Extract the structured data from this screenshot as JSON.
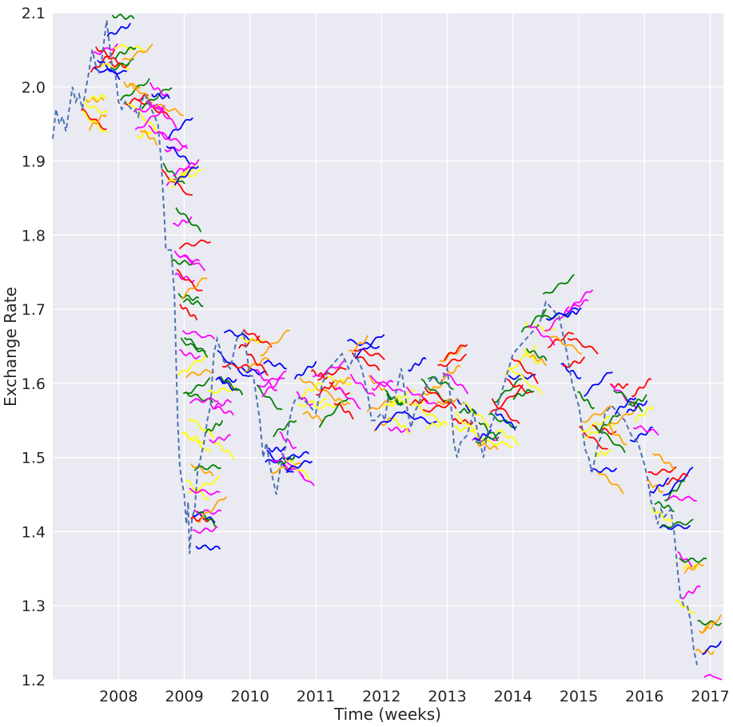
{
  "chart_data": {
    "type": "line",
    "title": "",
    "xlabel": "Time (weeks)",
    "ylabel": "Exchange Rate",
    "xlim": [
      2007.0,
      2017.2
    ],
    "ylim": [
      1.2,
      2.1
    ],
    "x_ticks": [
      2008,
      2009,
      2010,
      2011,
      2012,
      2013,
      2014,
      2015,
      2016,
      2017
    ],
    "x_tick_labels": [
      "2008",
      "2009",
      "2010",
      "2011",
      "2012",
      "2013",
      "2014",
      "2015",
      "2016",
      "2017"
    ],
    "y_ticks": [
      1.2,
      1.3,
      1.4,
      1.5,
      1.6,
      1.7,
      1.8,
      1.9,
      2.0,
      2.1
    ],
    "y_tick_labels": [
      "1.2",
      "1.3",
      "1.4",
      "1.5",
      "1.6",
      "1.7",
      "1.8",
      "1.9",
      "2.0",
      "2.1"
    ],
    "grid": true,
    "background": "#eaeaf2",
    "actual_series": {
      "style": "dashed",
      "color": "#4c72b0",
      "points": [
        [
          2007.0,
          1.93
        ],
        [
          2007.05,
          1.97
        ],
        [
          2007.1,
          1.95
        ],
        [
          2007.15,
          1.96
        ],
        [
          2007.2,
          1.94
        ],
        [
          2007.25,
          1.97
        ],
        [
          2007.3,
          2.0
        ],
        [
          2007.35,
          1.98
        ],
        [
          2007.4,
          1.99
        ],
        [
          2007.45,
          1.97
        ],
        [
          2007.55,
          2.02
        ],
        [
          2007.6,
          2.05
        ],
        [
          2007.65,
          2.03
        ],
        [
          2007.7,
          2.02
        ],
        [
          2007.75,
          2.04
        ],
        [
          2007.82,
          2.09
        ],
        [
          2007.9,
          2.03
        ],
        [
          2007.95,
          2.02
        ],
        [
          2008.0,
          1.98
        ],
        [
          2008.05,
          1.97
        ],
        [
          2008.1,
          1.98
        ],
        [
          2008.2,
          1.97
        ],
        [
          2008.25,
          1.97
        ],
        [
          2008.3,
          1.96
        ],
        [
          2008.35,
          1.98
        ],
        [
          2008.4,
          1.99
        ],
        [
          2008.45,
          1.98
        ],
        [
          2008.5,
          1.97
        ],
        [
          2008.55,
          1.96
        ],
        [
          2008.6,
          1.95
        ],
        [
          2008.65,
          1.9
        ],
        [
          2008.7,
          1.82
        ],
        [
          2008.72,
          1.78
        ],
        [
          2008.8,
          1.78
        ],
        [
          2008.85,
          1.72
        ],
        [
          2008.88,
          1.62
        ],
        [
          2008.9,
          1.55
        ],
        [
          2008.93,
          1.49
        ],
        [
          2008.96,
          1.47
        ],
        [
          2009.0,
          1.45
        ],
        [
          2009.03,
          1.41
        ],
        [
          2009.06,
          1.44
        ],
        [
          2009.08,
          1.37
        ],
        [
          2009.12,
          1.42
        ],
        [
          2009.16,
          1.43
        ],
        [
          2009.2,
          1.48
        ],
        [
          2009.25,
          1.5
        ],
        [
          2009.3,
          1.52
        ],
        [
          2009.35,
          1.55
        ],
        [
          2009.4,
          1.57
        ],
        [
          2009.45,
          1.64
        ],
        [
          2009.5,
          1.66
        ],
        [
          2009.6,
          1.63
        ],
        [
          2009.7,
          1.62
        ],
        [
          2009.8,
          1.66
        ],
        [
          2009.9,
          1.67
        ],
        [
          2010.0,
          1.61
        ],
        [
          2010.05,
          1.61
        ],
        [
          2010.1,
          1.58
        ],
        [
          2010.15,
          1.55
        ],
        [
          2010.2,
          1.5
        ],
        [
          2010.25,
          1.52
        ],
        [
          2010.3,
          1.49
        ],
        [
          2010.35,
          1.47
        ],
        [
          2010.4,
          1.45
        ],
        [
          2010.45,
          1.48
        ],
        [
          2010.5,
          1.5
        ],
        [
          2010.55,
          1.52
        ],
        [
          2010.6,
          1.55
        ],
        [
          2010.65,
          1.57
        ],
        [
          2010.7,
          1.58
        ],
        [
          2010.8,
          1.58
        ],
        [
          2010.9,
          1.57
        ],
        [
          2011.0,
          1.56
        ],
        [
          2011.05,
          1.58
        ],
        [
          2011.1,
          1.6
        ],
        [
          2011.2,
          1.62
        ],
        [
          2011.3,
          1.63
        ],
        [
          2011.4,
          1.64
        ],
        [
          2011.5,
          1.62
        ],
        [
          2011.6,
          1.64
        ],
        [
          2011.7,
          1.62
        ],
        [
          2011.8,
          1.58
        ],
        [
          2011.85,
          1.55
        ],
        [
          2011.9,
          1.55
        ],
        [
          2012.0,
          1.56
        ],
        [
          2012.05,
          1.55
        ],
        [
          2012.1,
          1.58
        ],
        [
          2012.2,
          1.58
        ],
        [
          2012.3,
          1.62
        ],
        [
          2012.4,
          1.56
        ],
        [
          2012.45,
          1.54
        ],
        [
          2012.5,
          1.56
        ],
        [
          2012.6,
          1.58
        ],
        [
          2012.7,
          1.6
        ],
        [
          2012.8,
          1.61
        ],
        [
          2012.9,
          1.6
        ],
        [
          2013.0,
          1.62
        ],
        [
          2013.05,
          1.58
        ],
        [
          2013.1,
          1.52
        ],
        [
          2013.15,
          1.5
        ],
        [
          2013.2,
          1.52
        ],
        [
          2013.3,
          1.53
        ],
        [
          2013.4,
          1.56
        ],
        [
          2013.5,
          1.52
        ],
        [
          2013.55,
          1.5
        ],
        [
          2013.6,
          1.53
        ],
        [
          2013.7,
          1.55
        ],
        [
          2013.8,
          1.58
        ],
        [
          2013.9,
          1.61
        ],
        [
          2014.0,
          1.64
        ],
        [
          2014.1,
          1.65
        ],
        [
          2014.2,
          1.66
        ],
        [
          2014.3,
          1.67
        ],
        [
          2014.4,
          1.68
        ],
        [
          2014.5,
          1.71
        ],
        [
          2014.6,
          1.7
        ],
        [
          2014.7,
          1.69
        ],
        [
          2014.8,
          1.65
        ],
        [
          2014.9,
          1.6
        ],
        [
          2015.0,
          1.57
        ],
        [
          2015.05,
          1.54
        ],
        [
          2015.1,
          1.51
        ],
        [
          2015.15,
          1.5
        ],
        [
          2015.2,
          1.48
        ],
        [
          2015.25,
          1.5
        ],
        [
          2015.3,
          1.52
        ],
        [
          2015.35,
          1.53
        ],
        [
          2015.4,
          1.56
        ],
        [
          2015.5,
          1.57
        ],
        [
          2015.6,
          1.56
        ],
        [
          2015.7,
          1.55
        ],
        [
          2015.8,
          1.53
        ],
        [
          2015.9,
          1.52
        ],
        [
          2016.0,
          1.49
        ],
        [
          2016.05,
          1.47
        ],
        [
          2016.1,
          1.44
        ],
        [
          2016.15,
          1.43
        ],
        [
          2016.2,
          1.41
        ],
        [
          2016.25,
          1.43
        ],
        [
          2016.3,
          1.42
        ],
        [
          2016.4,
          1.43
        ],
        [
          2016.45,
          1.4
        ],
        [
          2016.5,
          1.35
        ],
        [
          2016.55,
          1.31
        ],
        [
          2016.6,
          1.3
        ],
        [
          2016.65,
          1.3
        ],
        [
          2016.7,
          1.28
        ],
        [
          2016.75,
          1.24
        ],
        [
          2016.8,
          1.22
        ]
      ]
    },
    "forecast_colors": [
      "#ffff00",
      "#ff0000",
      "#ff00ff",
      "#0000ff",
      "#ffa500",
      "#008000"
    ],
    "forecast_anchors": [
      [
        2007.45,
        1.97
      ],
      [
        2007.6,
        2.05
      ],
      [
        2007.85,
        2.06
      ],
      [
        2008.05,
        2.0
      ],
      [
        2008.25,
        1.97
      ],
      [
        2008.45,
        1.98
      ],
      [
        2008.65,
        1.92
      ],
      [
        2008.75,
        1.87
      ],
      [
        2008.82,
        1.8
      ],
      [
        2008.88,
        1.72
      ],
      [
        2008.92,
        1.64
      ],
      [
        2008.98,
        1.55
      ],
      [
        2009.05,
        1.46
      ],
      [
        2009.12,
        1.42
      ],
      [
        2009.35,
        1.56
      ],
      [
        2009.5,
        1.64
      ],
      [
        2009.85,
        1.65
      ],
      [
        2010.1,
        1.6
      ],
      [
        2010.25,
        1.52
      ],
      [
        2010.45,
        1.52
      ],
      [
        2010.7,
        1.57
      ],
      [
        2010.95,
        1.58
      ],
      [
        2011.2,
        1.61
      ],
      [
        2011.5,
        1.63
      ],
      [
        2011.8,
        1.57
      ],
      [
        2012.05,
        1.57
      ],
      [
        2012.35,
        1.58
      ],
      [
        2012.6,
        1.58
      ],
      [
        2012.85,
        1.6
      ],
      [
        2013.1,
        1.54
      ],
      [
        2013.4,
        1.54
      ],
      [
        2013.65,
        1.56
      ],
      [
        2013.9,
        1.61
      ],
      [
        2014.15,
        1.65
      ],
      [
        2014.45,
        1.69
      ],
      [
        2014.75,
        1.66
      ],
      [
        2015.0,
        1.56
      ],
      [
        2015.2,
        1.51
      ],
      [
        2015.45,
        1.56
      ],
      [
        2015.75,
        1.55
      ],
      [
        2016.05,
        1.47
      ],
      [
        2016.25,
        1.43
      ],
      [
        2016.5,
        1.34
      ],
      [
        2016.8,
        1.24
      ]
    ]
  }
}
